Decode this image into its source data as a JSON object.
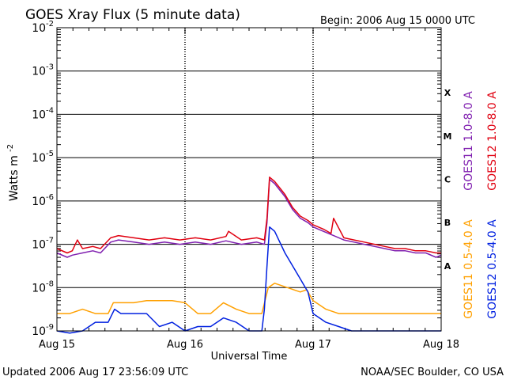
{
  "chart_data": {
    "type": "line",
    "title": "GOES Xray Flux (5 minute data)",
    "begin_label": "Begin:  2006 Aug 15 0000 UTC",
    "xlabel": "Universal Time",
    "ylabel": "Watts m",
    "ylabel_sup": "-2",
    "y_scale": "log",
    "ylim_exponent": [
      -9,
      -2
    ],
    "y_ticks": [
      {
        "base": "10",
        "exp": "-2",
        "value": -2
      },
      {
        "base": "10",
        "exp": "-3",
        "value": -3
      },
      {
        "base": "10",
        "exp": "-4",
        "value": -4
      },
      {
        "base": "10",
        "exp": "-5",
        "value": -5
      },
      {
        "base": "10",
        "exp": "-6",
        "value": -6
      },
      {
        "base": "10",
        "exp": "-7",
        "value": -7
      },
      {
        "base": "10",
        "exp": "-8",
        "value": -8
      },
      {
        "base": "10",
        "exp": "-9",
        "value": -9
      }
    ],
    "x_ticks": [
      {
        "label": "Aug 15",
        "day": 0
      },
      {
        "label": "Aug 16",
        "day": 1
      },
      {
        "label": "Aug 17",
        "day": 2
      },
      {
        "label": "Aug 18",
        "day": 3
      }
    ],
    "xlim_days": [
      0,
      3
    ],
    "flare_classes": [
      {
        "label": "X",
        "value": -3.5
      },
      {
        "label": "M",
        "value": -4.5
      },
      {
        "label": "C",
        "value": -5.5
      },
      {
        "label": "B",
        "value": -6.5
      },
      {
        "label": "A",
        "value": -7.5
      }
    ],
    "legend": [
      {
        "name": "GOES11 1.0-8.0 A",
        "color": "#8020b0"
      },
      {
        "name": "GOES12 1.0-8.0 A",
        "color": "#e00010"
      },
      {
        "name": "GOES11 0.5-4.0 A",
        "color": "#ffa000"
      },
      {
        "name": "GOES12 0.5-4.0 A",
        "color": "#0020e0"
      }
    ],
    "series": [
      {
        "name": "GOES11 1.0-8.0 A",
        "color": "#8020b0",
        "x_days": [
          0.0,
          0.08,
          0.12,
          0.2,
          0.28,
          0.34,
          0.42,
          0.48,
          0.6,
          0.72,
          0.84,
          0.96,
          1.08,
          1.2,
          1.32,
          1.44,
          1.56,
          1.62,
          1.64,
          1.66,
          1.7,
          1.78,
          1.84,
          1.9,
          1.96,
          2.0,
          2.08,
          2.16,
          2.24,
          2.32,
          2.4,
          2.48,
          2.56,
          2.64,
          2.72,
          2.8,
          2.88,
          2.96,
          3.0
        ],
        "log_values": [
          -7.2,
          -7.3,
          -7.25,
          -7.2,
          -7.15,
          -7.2,
          -6.95,
          -6.9,
          -6.95,
          -7.0,
          -6.95,
          -7.0,
          -6.95,
          -7.0,
          -6.92,
          -7.0,
          -6.95,
          -7.0,
          -6.5,
          -5.5,
          -5.6,
          -5.9,
          -6.2,
          -6.4,
          -6.5,
          -6.6,
          -6.7,
          -6.8,
          -6.9,
          -6.95,
          -7.0,
          -7.05,
          -7.1,
          -7.15,
          -7.15,
          -7.2,
          -7.2,
          -7.3,
          -7.25
        ]
      },
      {
        "name": "GOES12 1.0-8.0 A",
        "color": "#e00010",
        "x_days": [
          0.0,
          0.08,
          0.12,
          0.16,
          0.2,
          0.28,
          0.34,
          0.42,
          0.48,
          0.6,
          0.72,
          0.84,
          0.96,
          1.08,
          1.2,
          1.32,
          1.34,
          1.44,
          1.56,
          1.62,
          1.64,
          1.66,
          1.7,
          1.78,
          1.84,
          1.9,
          1.96,
          2.0,
          2.08,
          2.14,
          2.16,
          2.24,
          2.32,
          2.4,
          2.48,
          2.56,
          2.64,
          2.72,
          2.8,
          2.88,
          2.96,
          3.0
        ],
        "log_values": [
          -7.1,
          -7.2,
          -7.15,
          -6.9,
          -7.1,
          -7.05,
          -7.1,
          -6.85,
          -6.8,
          -6.85,
          -6.9,
          -6.85,
          -6.9,
          -6.85,
          -6.9,
          -6.82,
          -6.7,
          -6.9,
          -6.85,
          -6.9,
          -6.4,
          -5.45,
          -5.55,
          -5.85,
          -6.15,
          -6.35,
          -6.45,
          -6.55,
          -6.65,
          -6.75,
          -6.4,
          -6.85,
          -6.9,
          -6.95,
          -7.0,
          -7.05,
          -7.1,
          -7.1,
          -7.15,
          -7.15,
          -7.2,
          -7.2
        ]
      },
      {
        "name": "GOES11 0.5-4.0 A",
        "color": "#ffa000",
        "x_days": [
          0.0,
          0.1,
          0.2,
          0.3,
          0.4,
          0.44,
          0.5,
          0.6,
          0.7,
          0.8,
          0.9,
          1.0,
          1.1,
          1.2,
          1.3,
          1.4,
          1.5,
          1.6,
          1.65,
          1.7,
          1.8,
          1.9,
          1.95,
          2.0,
          2.1,
          2.2,
          2.3,
          2.4,
          2.5,
          2.6,
          2.7,
          2.8,
          2.9,
          3.0
        ],
        "log_values": [
          -8.6,
          -8.6,
          -8.5,
          -8.6,
          -8.6,
          -8.35,
          -8.35,
          -8.35,
          -8.3,
          -8.3,
          -8.3,
          -8.35,
          -8.6,
          -8.6,
          -8.35,
          -8.5,
          -8.6,
          -8.6,
          -8.0,
          -7.9,
          -8.0,
          -8.1,
          -8.05,
          -8.3,
          -8.5,
          -8.6,
          -8.6,
          -8.6,
          -8.6,
          -8.6,
          -8.6,
          -8.6,
          -8.6,
          -8.6
        ]
      },
      {
        "name": "GOES12 0.5-4.0 A",
        "color": "#0020e0",
        "x_days": [
          0.0,
          0.1,
          0.2,
          0.3,
          0.4,
          0.45,
          0.5,
          0.6,
          0.7,
          0.8,
          0.9,
          1.0,
          1.1,
          1.2,
          1.3,
          1.4,
          1.5,
          1.6,
          1.62,
          1.64,
          1.66,
          1.7,
          1.78,
          1.84,
          1.9,
          1.96,
          2.0,
          2.1,
          2.2,
          2.3,
          2.4,
          2.5,
          2.6,
          2.7,
          2.8,
          2.9,
          3.0
        ],
        "log_values": [
          -9.0,
          -9.05,
          -9.0,
          -8.8,
          -8.8,
          -8.5,
          -8.6,
          -8.6,
          -8.6,
          -8.9,
          -8.8,
          -9.0,
          -8.9,
          -8.9,
          -8.7,
          -8.8,
          -9.0,
          -9.0,
          -8.5,
          -7.5,
          -6.6,
          -6.7,
          -7.2,
          -7.5,
          -7.8,
          -8.1,
          -8.6,
          -8.8,
          -8.9,
          -9.0,
          -9.0,
          -9.0,
          -9.0,
          -9.0,
          -9.0,
          -9.0,
          -9.0
        ]
      }
    ]
  },
  "footer": {
    "updated": "Updated 2006 Aug 17 23:56:09 UTC",
    "credit": "NOAA/SEC Boulder, CO USA"
  }
}
